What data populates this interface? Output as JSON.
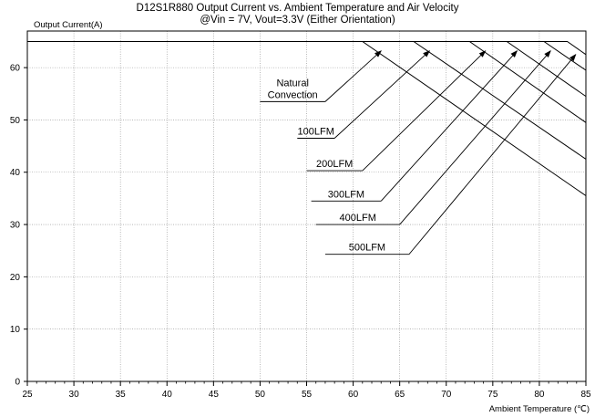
{
  "chart_data": {
    "type": "line",
    "title": "D12S1R880 Output Current vs. Ambient Temperature and Air Velocity",
    "subtitle": "@Vin = 7V, Vout=3.3V (Either Orientation)",
    "xlabel": "Ambient Temperature (℃)",
    "ylabel": "Output Current(A)",
    "xlim": [
      25,
      85
    ],
    "ylim": [
      0,
      67
    ],
    "xticks": [
      25,
      30,
      35,
      40,
      45,
      50,
      55,
      60,
      65,
      70,
      75,
      80,
      85
    ],
    "yticks": [
      0,
      10,
      20,
      30,
      40,
      50,
      60
    ],
    "grid": true,
    "series": [
      {
        "name": "Natural Convection",
        "x": [
          25,
          61,
          85
        ],
        "y": [
          65,
          65,
          35.5
        ]
      },
      {
        "name": "100LFM",
        "x": [
          25,
          66.5,
          85
        ],
        "y": [
          65,
          65,
          42.5
        ]
      },
      {
        "name": "200LFM",
        "x": [
          25,
          72.5,
          85
        ],
        "y": [
          65,
          65,
          49.5
        ]
      },
      {
        "name": "300LFM",
        "x": [
          25,
          76.5,
          85
        ],
        "y": [
          65,
          65,
          54.5
        ]
      },
      {
        "name": "400LFM",
        "x": [
          25,
          80.5,
          85
        ],
        "y": [
          65,
          65,
          59.5
        ]
      },
      {
        "name": "500LFM",
        "x": [
          25,
          83,
          85
        ],
        "y": [
          65,
          65,
          62.5
        ]
      }
    ],
    "annotations": [
      {
        "lines": [
          "Natural",
          "Convection"
        ],
        "shelf_x": [
          50,
          57
        ],
        "shelf_y": 53.5,
        "arrow_to": [
          63,
          63.2
        ]
      },
      {
        "lines": [
          "100LFM"
        ],
        "shelf_x": [
          54,
          58
        ],
        "shelf_y": 46.5,
        "arrow_to": [
          68.2,
          63.2
        ]
      },
      {
        "lines": [
          "200LFM"
        ],
        "shelf_x": [
          55,
          61
        ],
        "shelf_y": 40.3,
        "arrow_to": [
          74.2,
          63.2
        ]
      },
      {
        "lines": [
          "300LFM"
        ],
        "shelf_x": [
          55.5,
          63
        ],
        "shelf_y": 34.5,
        "arrow_to": [
          77.6,
          63.2
        ]
      },
      {
        "lines": [
          "400LFM"
        ],
        "shelf_x": [
          56,
          65
        ],
        "shelf_y": 30,
        "arrow_to": [
          81.2,
          63.2
        ]
      },
      {
        "lines": [
          "500LFM"
        ],
        "shelf_x": [
          57,
          66
        ],
        "shelf_y": 24.3,
        "arrow_to": [
          83.9,
          62.5
        ]
      }
    ]
  }
}
